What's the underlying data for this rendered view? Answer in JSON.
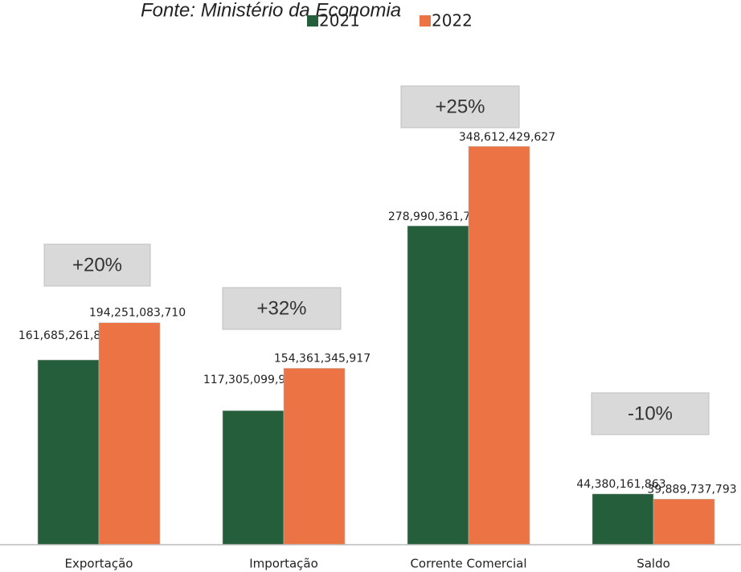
{
  "chart_data": {
    "type": "bar",
    "title": "Fonte: Ministério da Economia",
    "categories": [
      "Exportação",
      "Importação",
      "Corrente Comercial",
      "Saldo"
    ],
    "series": [
      {
        "name": "2021",
        "color": "#245e3a",
        "values": [
          161685261828,
          117305099965,
          278990361793,
          44380161863
        ],
        "value_labels": [
          "161,685,261,828",
          "117,305,099,965",
          "278,990,361,793",
          "44,380,161,863"
        ]
      },
      {
        "name": "2022",
        "color": "#ec7444",
        "values": [
          194251083710,
          154361345917,
          348612429627,
          39889737793
        ],
        "value_labels": [
          "194,251,083,710",
          "154,361,345,917",
          "348,612,429,627",
          "39,889,737,793"
        ]
      }
    ],
    "annotations": [
      "+20%",
      "+32%",
      "+25%",
      "-10%"
    ],
    "ylim": [
      0,
      450000000000
    ]
  }
}
